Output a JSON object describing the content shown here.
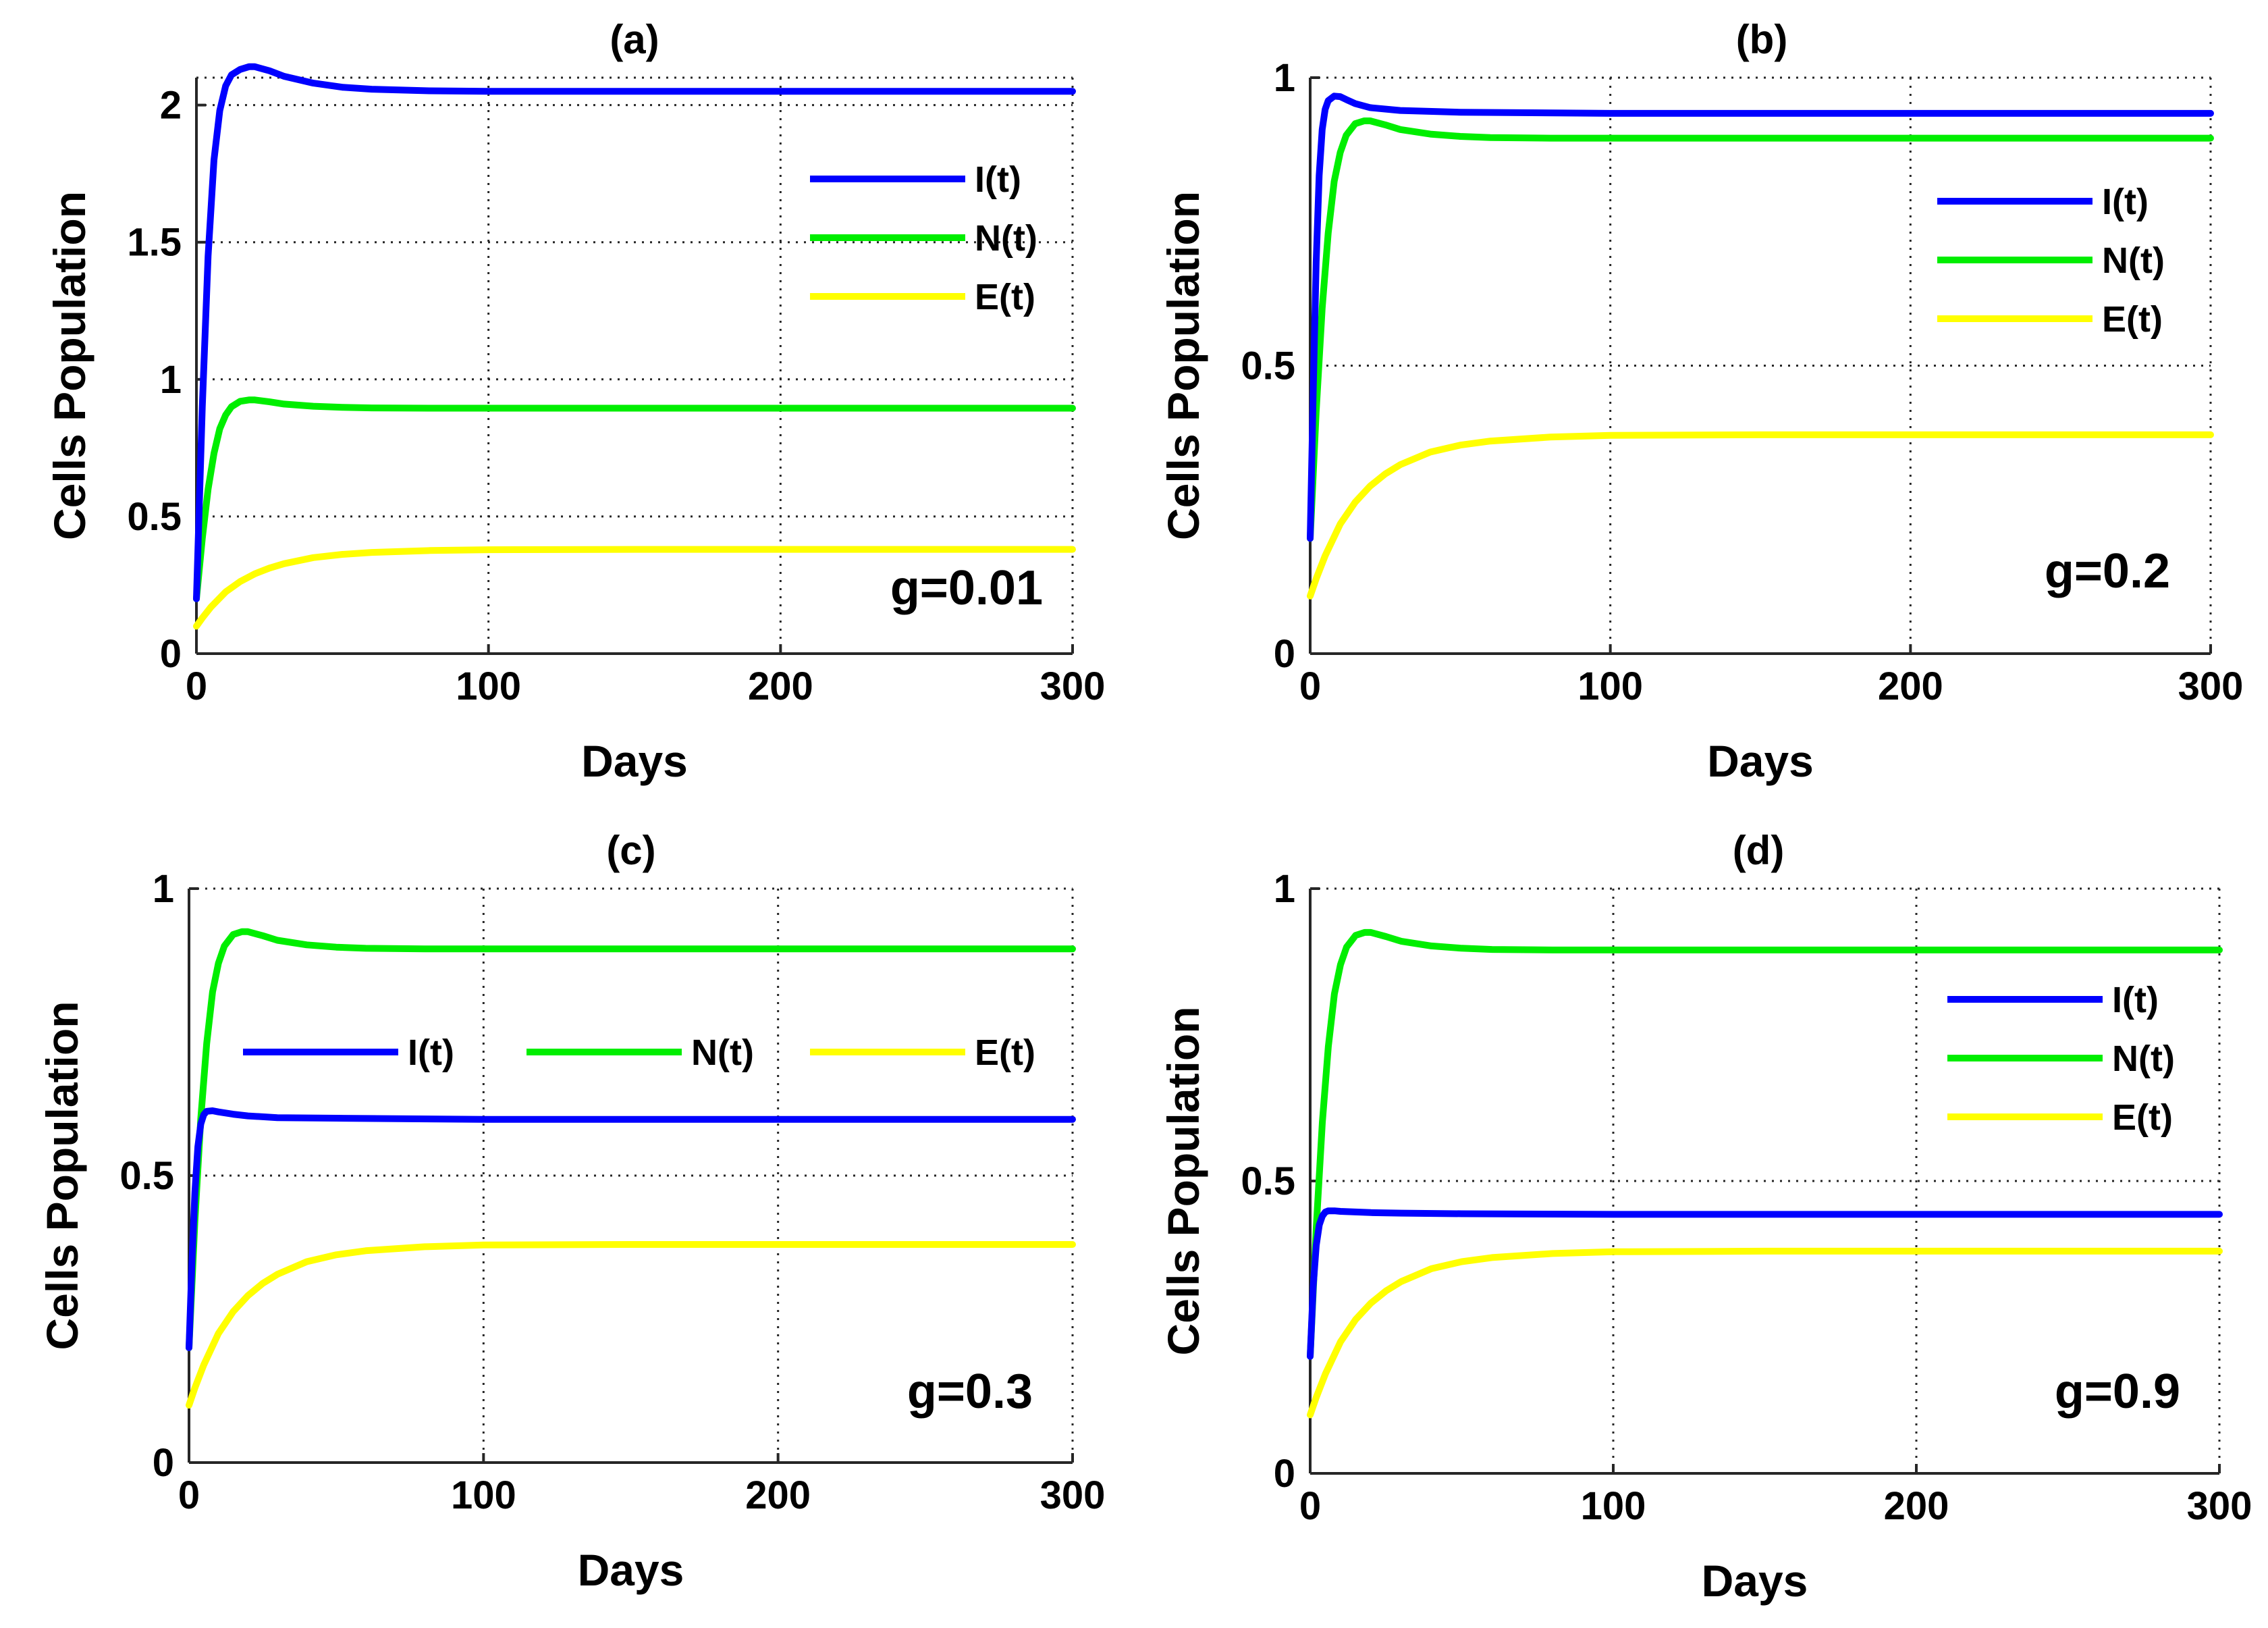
{
  "chart_data": [
    {
      "type": "line",
      "title": "(a)",
      "xlabel": "Days",
      "ylabel": "Cells Population",
      "xlim": [
        0,
        300
      ],
      "ylim": [
        0,
        2.1
      ],
      "xticks": [
        0,
        100,
        200,
        300
      ],
      "yticks": [
        0,
        0.5,
        1,
        1.5,
        2
      ],
      "ytick_labels": [
        "0",
        "0.5",
        "1",
        "1.5",
        "2"
      ],
      "grid": true,
      "legend_position": "top-right",
      "legend_layout": "vertical",
      "annotation": "g=0.01",
      "series": [
        {
          "name": "I(t)",
          "color": "#0000ff",
          "x": [
            0,
            2,
            4,
            6,
            8,
            10,
            12,
            15,
            18,
            20,
            25,
            30,
            40,
            50,
            60,
            80,
            100,
            150,
            200,
            250,
            300
          ],
          "y": [
            0.2,
            0.9,
            1.45,
            1.8,
            1.98,
            2.07,
            2.11,
            2.13,
            2.14,
            2.14,
            2.125,
            2.105,
            2.08,
            2.065,
            2.058,
            2.052,
            2.05,
            2.05,
            2.05,
            2.05,
            2.05
          ]
        },
        {
          "name": "N(t)",
          "color": "#00ee00",
          "x": [
            0,
            2,
            4,
            6,
            8,
            10,
            12,
            15,
            18,
            20,
            25,
            30,
            40,
            50,
            60,
            80,
            100,
            150,
            200,
            250,
            300
          ],
          "y": [
            0.2,
            0.42,
            0.6,
            0.73,
            0.82,
            0.87,
            0.9,
            0.92,
            0.925,
            0.925,
            0.918,
            0.91,
            0.902,
            0.898,
            0.896,
            0.895,
            0.895,
            0.895,
            0.895,
            0.895,
            0.895
          ]
        },
        {
          "name": "E(t)",
          "color": "#ffff00",
          "x": [
            0,
            2,
            5,
            10,
            15,
            20,
            25,
            30,
            40,
            50,
            60,
            80,
            100,
            150,
            200,
            250,
            300
          ],
          "y": [
            0.1,
            0.13,
            0.17,
            0.225,
            0.263,
            0.291,
            0.312,
            0.328,
            0.35,
            0.362,
            0.369,
            0.376,
            0.379,
            0.38,
            0.38,
            0.38,
            0.38
          ]
        }
      ]
    },
    {
      "type": "line",
      "title": "(b)",
      "xlabel": "Days",
      "ylabel": "Cells Population",
      "xlim": [
        0,
        300
      ],
      "ylim": [
        0,
        1
      ],
      "xticks": [
        0,
        100,
        200,
        300
      ],
      "yticks": [
        0,
        0.5,
        1
      ],
      "ytick_labels": [
        "0",
        "0.5",
        "1"
      ],
      "grid": true,
      "legend_position": "top-right",
      "legend_layout": "vertical",
      "annotation": "g=0.2",
      "series": [
        {
          "name": "I(t)",
          "color": "#0000ff",
          "x": [
            0,
            1,
            2,
            3,
            4,
            5,
            6,
            8,
            10,
            12,
            15,
            20,
            30,
            50,
            100,
            150,
            200,
            250,
            300
          ],
          "y": [
            0.2,
            0.45,
            0.68,
            0.83,
            0.91,
            0.945,
            0.96,
            0.968,
            0.967,
            0.962,
            0.955,
            0.948,
            0.943,
            0.94,
            0.938,
            0.938,
            0.938,
            0.938,
            0.938
          ]
        },
        {
          "name": "N(t)",
          "color": "#00ee00",
          "x": [
            0,
            2,
            4,
            6,
            8,
            10,
            12,
            15,
            18,
            20,
            25,
            30,
            40,
            50,
            60,
            80,
            100,
            150,
            200,
            250,
            300
          ],
          "y": [
            0.2,
            0.42,
            0.6,
            0.73,
            0.82,
            0.87,
            0.9,
            0.92,
            0.925,
            0.925,
            0.918,
            0.91,
            0.902,
            0.898,
            0.896,
            0.895,
            0.895,
            0.895,
            0.895,
            0.895,
            0.895
          ]
        },
        {
          "name": "E(t)",
          "color": "#ffff00",
          "x": [
            0,
            2,
            5,
            10,
            15,
            20,
            25,
            30,
            40,
            50,
            60,
            80,
            100,
            150,
            200,
            250,
            300
          ],
          "y": [
            0.1,
            0.13,
            0.17,
            0.225,
            0.263,
            0.291,
            0.312,
            0.328,
            0.35,
            0.362,
            0.369,
            0.376,
            0.379,
            0.38,
            0.38,
            0.38,
            0.38
          ]
        }
      ]
    },
    {
      "type": "line",
      "title": "(c)",
      "xlabel": "Days",
      "ylabel": "Cells Population",
      "xlim": [
        0,
        300
      ],
      "ylim": [
        0,
        1
      ],
      "xticks": [
        0,
        100,
        200,
        300
      ],
      "yticks": [
        0,
        0.5,
        1
      ],
      "ytick_labels": [
        "0",
        "0.5",
        "1"
      ],
      "grid": true,
      "legend_position": "middle",
      "legend_layout": "horizontal",
      "annotation": "g=0.3",
      "series": [
        {
          "name": "I(t)",
          "color": "#0000ff",
          "x": [
            0,
            1,
            2,
            3,
            4,
            5,
            6,
            8,
            10,
            15,
            20,
            30,
            50,
            100,
            150,
            200,
            250,
            300
          ],
          "y": [
            0.2,
            0.35,
            0.47,
            0.55,
            0.59,
            0.606,
            0.612,
            0.613,
            0.611,
            0.607,
            0.604,
            0.601,
            0.6,
            0.598,
            0.598,
            0.598,
            0.598,
            0.598
          ]
        },
        {
          "name": "N(t)",
          "color": "#00ee00",
          "x": [
            0,
            2,
            4,
            6,
            8,
            10,
            12,
            15,
            18,
            20,
            25,
            30,
            40,
            50,
            60,
            80,
            100,
            150,
            200,
            250,
            300
          ],
          "y": [
            0.2,
            0.42,
            0.6,
            0.73,
            0.82,
            0.87,
            0.9,
            0.92,
            0.925,
            0.925,
            0.918,
            0.91,
            0.902,
            0.898,
            0.896,
            0.895,
            0.895,
            0.895,
            0.895,
            0.895,
            0.895
          ]
        },
        {
          "name": "E(t)",
          "color": "#ffff00",
          "x": [
            0,
            2,
            5,
            10,
            15,
            20,
            25,
            30,
            40,
            50,
            60,
            80,
            100,
            150,
            200,
            250,
            300
          ],
          "y": [
            0.1,
            0.13,
            0.17,
            0.225,
            0.263,
            0.291,
            0.312,
            0.328,
            0.35,
            0.362,
            0.369,
            0.376,
            0.379,
            0.38,
            0.38,
            0.38,
            0.38
          ]
        }
      ]
    },
    {
      "type": "line",
      "title": "(d)",
      "xlabel": "Days",
      "ylabel": "Cells Population",
      "xlim": [
        0,
        300
      ],
      "ylim": [
        0,
        1
      ],
      "xticks": [
        0,
        100,
        200,
        300
      ],
      "yticks": [
        0,
        0.5,
        1
      ],
      "ytick_labels": [
        "0",
        "0.5",
        "1"
      ],
      "grid": true,
      "legend_position": "top-right",
      "legend_layout": "vertical",
      "annotation": "g=0.9",
      "series": [
        {
          "name": "I(t)",
          "color": "#0000ff",
          "x": [
            0,
            1,
            2,
            3,
            4,
            5,
            6,
            8,
            10,
            15,
            20,
            30,
            50,
            100,
            150,
            200,
            250,
            300
          ],
          "y": [
            0.2,
            0.32,
            0.39,
            0.425,
            0.44,
            0.447,
            0.449,
            0.449,
            0.448,
            0.447,
            0.446,
            0.445,
            0.444,
            0.443,
            0.443,
            0.443,
            0.443,
            0.443
          ]
        },
        {
          "name": "N(t)",
          "color": "#00ee00",
          "x": [
            0,
            2,
            4,
            6,
            8,
            10,
            12,
            15,
            18,
            20,
            25,
            30,
            40,
            50,
            60,
            80,
            100,
            150,
            200,
            250,
            300
          ],
          "y": [
            0.2,
            0.42,
            0.6,
            0.73,
            0.82,
            0.87,
            0.9,
            0.92,
            0.925,
            0.925,
            0.918,
            0.91,
            0.902,
            0.898,
            0.896,
            0.895,
            0.895,
            0.895,
            0.895,
            0.895,
            0.895
          ]
        },
        {
          "name": "E(t)",
          "color": "#ffff00",
          "x": [
            0,
            2,
            5,
            10,
            15,
            20,
            25,
            30,
            40,
            50,
            60,
            80,
            100,
            150,
            200,
            250,
            300
          ],
          "y": [
            0.1,
            0.13,
            0.17,
            0.225,
            0.263,
            0.291,
            0.312,
            0.328,
            0.35,
            0.362,
            0.369,
            0.376,
            0.379,
            0.38,
            0.38,
            0.38,
            0.38
          ]
        }
      ]
    }
  ]
}
